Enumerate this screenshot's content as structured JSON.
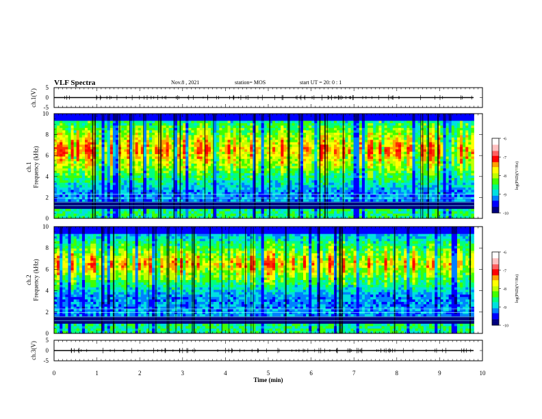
{
  "header": {
    "title": "VLF Spectra",
    "date": "Nov.8 , 2021",
    "station": "station= MOS",
    "start": "start UT = 20: 0 : 1"
  },
  "chart_data": [
    {
      "type": "line",
      "panel": "ch1-waveform",
      "ylabel": "ch.1(V)",
      "x": [
        0,
        10
      ],
      "ylim": [
        -5,
        5
      ],
      "yticks": [
        "5",
        "0",
        "-5"
      ],
      "series": [
        {
          "values": [
            0,
            0
          ]
        }
      ]
    },
    {
      "type": "heatmap",
      "panel": "ch1-spectrogram",
      "ylabel": "ch.1\nFrequency (kHz)",
      "ylim": [
        0,
        10
      ],
      "yticks": [
        "0",
        "2",
        "4",
        "6",
        "8",
        "10"
      ],
      "xlim": [
        0,
        10
      ],
      "data_end_min": 9.8,
      "intense_band_khz": [
        4,
        9
      ],
      "colorbar": {
        "label": "log(PSD)(V²/Hz)",
        "range": [
          -10,
          -6
        ],
        "ticks": [
          "-6",
          "-7",
          "-8",
          "-9",
          "-10"
        ]
      }
    },
    {
      "type": "heatmap",
      "panel": "ch2-spectrogram",
      "ylabel": "ch.2\nFrequency (kHz)",
      "ylim": [
        0,
        10
      ],
      "yticks": [
        "0",
        "2",
        "4",
        "6",
        "8",
        "10"
      ],
      "xlim": [
        0,
        10
      ],
      "data_end_min": 9.8,
      "intense_band_khz": [
        5,
        8
      ],
      "colorbar": {
        "label": "log(PSD)(V²/Hz)",
        "range": [
          -10,
          -6
        ],
        "ticks": [
          "-6",
          "-7",
          "-8",
          "-9",
          "-10"
        ]
      }
    },
    {
      "type": "line",
      "panel": "ch3-waveform",
      "ylabel": "ch.3(V)",
      "x": [
        0,
        10
      ],
      "ylim": [
        -5,
        5
      ],
      "yticks": [
        "5",
        "0",
        "-5"
      ],
      "series": [
        {
          "values": [
            0,
            0
          ]
        }
      ]
    }
  ],
  "xaxis": {
    "label": "Time (min)",
    "ticks": [
      "0",
      "1",
      "2",
      "3",
      "4",
      "5",
      "6",
      "7",
      "8",
      "9",
      "10"
    ]
  }
}
